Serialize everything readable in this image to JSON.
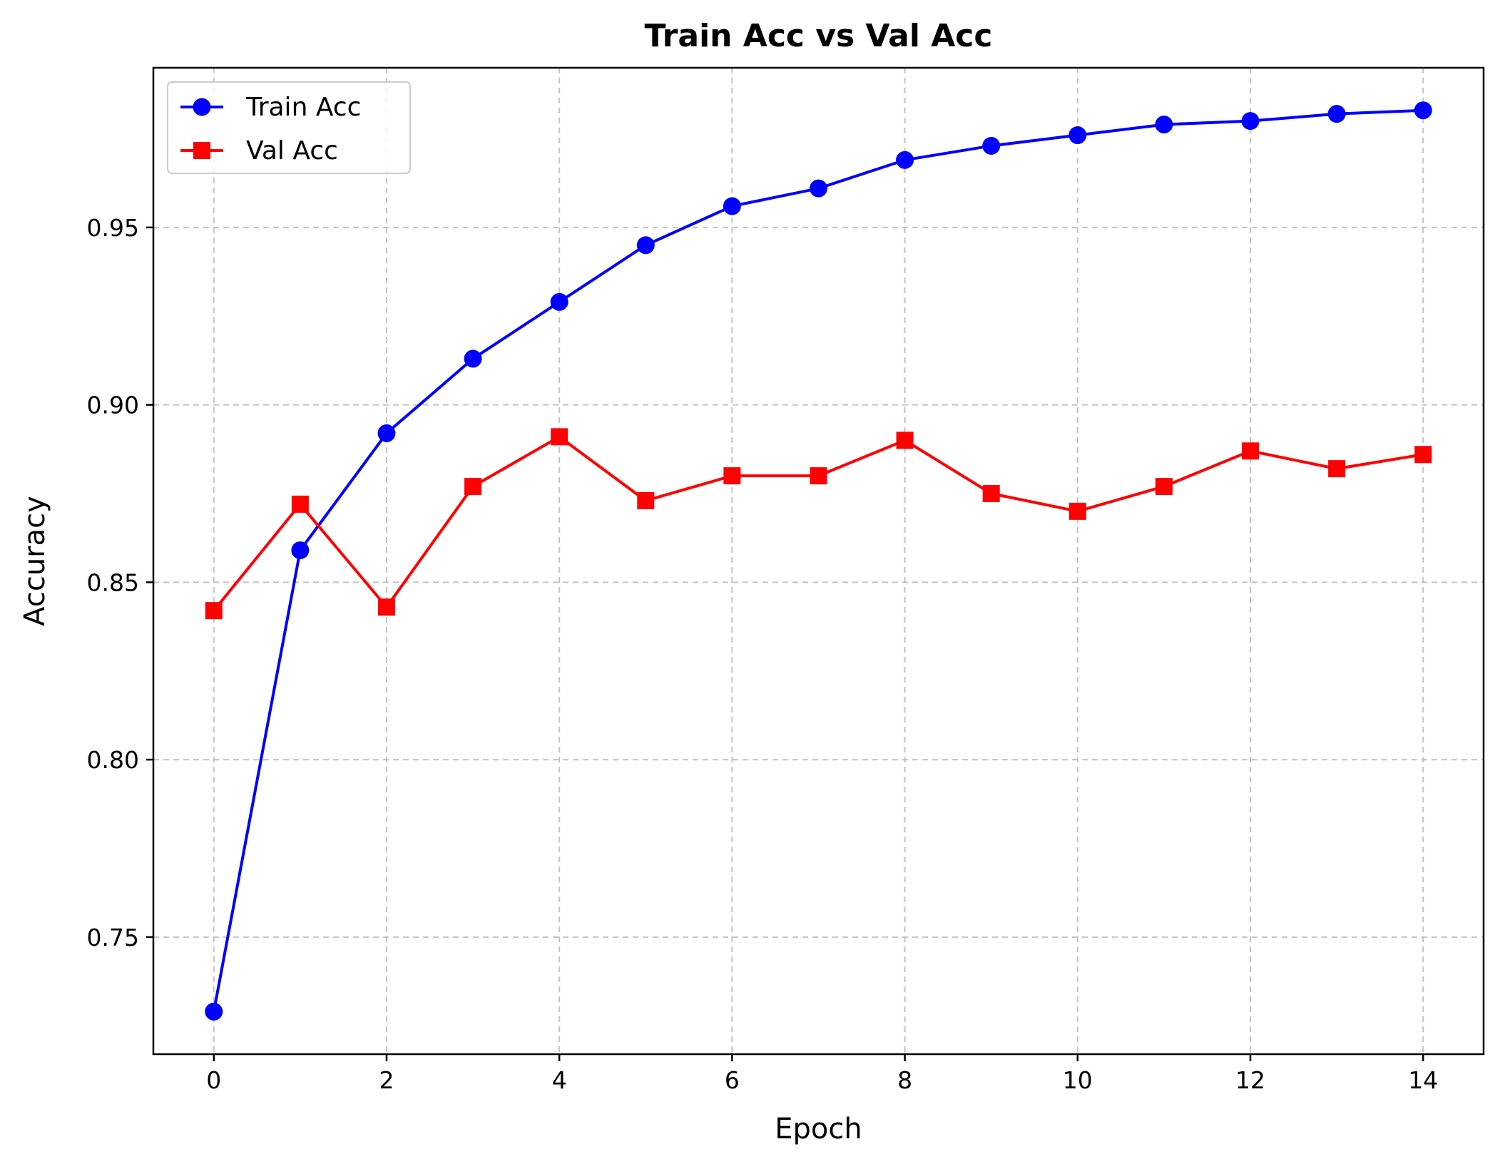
{
  "chart_data": {
    "type": "line",
    "title": "Train Acc vs Val Acc",
    "xlabel": "Epoch",
    "ylabel": "Accuracy",
    "x": [
      0,
      1,
      2,
      3,
      4,
      5,
      6,
      7,
      8,
      9,
      10,
      11,
      12,
      13,
      14
    ],
    "xlim": [
      -0.7,
      14.7
    ],
    "ylim": [
      0.717,
      0.995
    ],
    "xticks": [
      0,
      2,
      4,
      6,
      8,
      10,
      12,
      14
    ],
    "xtick_labels": [
      "0",
      "2",
      "4",
      "6",
      "8",
      "10",
      "12",
      "14"
    ],
    "yticks": [
      0.75,
      0.8,
      0.85,
      0.9,
      0.95
    ],
    "ytick_labels": [
      "0.75",
      "0.80",
      "0.85",
      "0.90",
      "0.95"
    ],
    "grid": true,
    "legend_position": "top-left",
    "series": [
      {
        "name": "Train Acc",
        "color": "#0000ff",
        "marker": "circle",
        "values": [
          0.729,
          0.859,
          0.892,
          0.913,
          0.929,
          0.945,
          0.956,
          0.961,
          0.969,
          0.973,
          0.976,
          0.979,
          0.98,
          0.982,
          0.983
        ]
      },
      {
        "name": "Val Acc",
        "color": "#ff0000",
        "marker": "square",
        "values": [
          0.842,
          0.872,
          0.843,
          0.877,
          0.891,
          0.873,
          0.88,
          0.88,
          0.89,
          0.875,
          0.87,
          0.877,
          0.887,
          0.882,
          0.886
        ]
      }
    ]
  }
}
